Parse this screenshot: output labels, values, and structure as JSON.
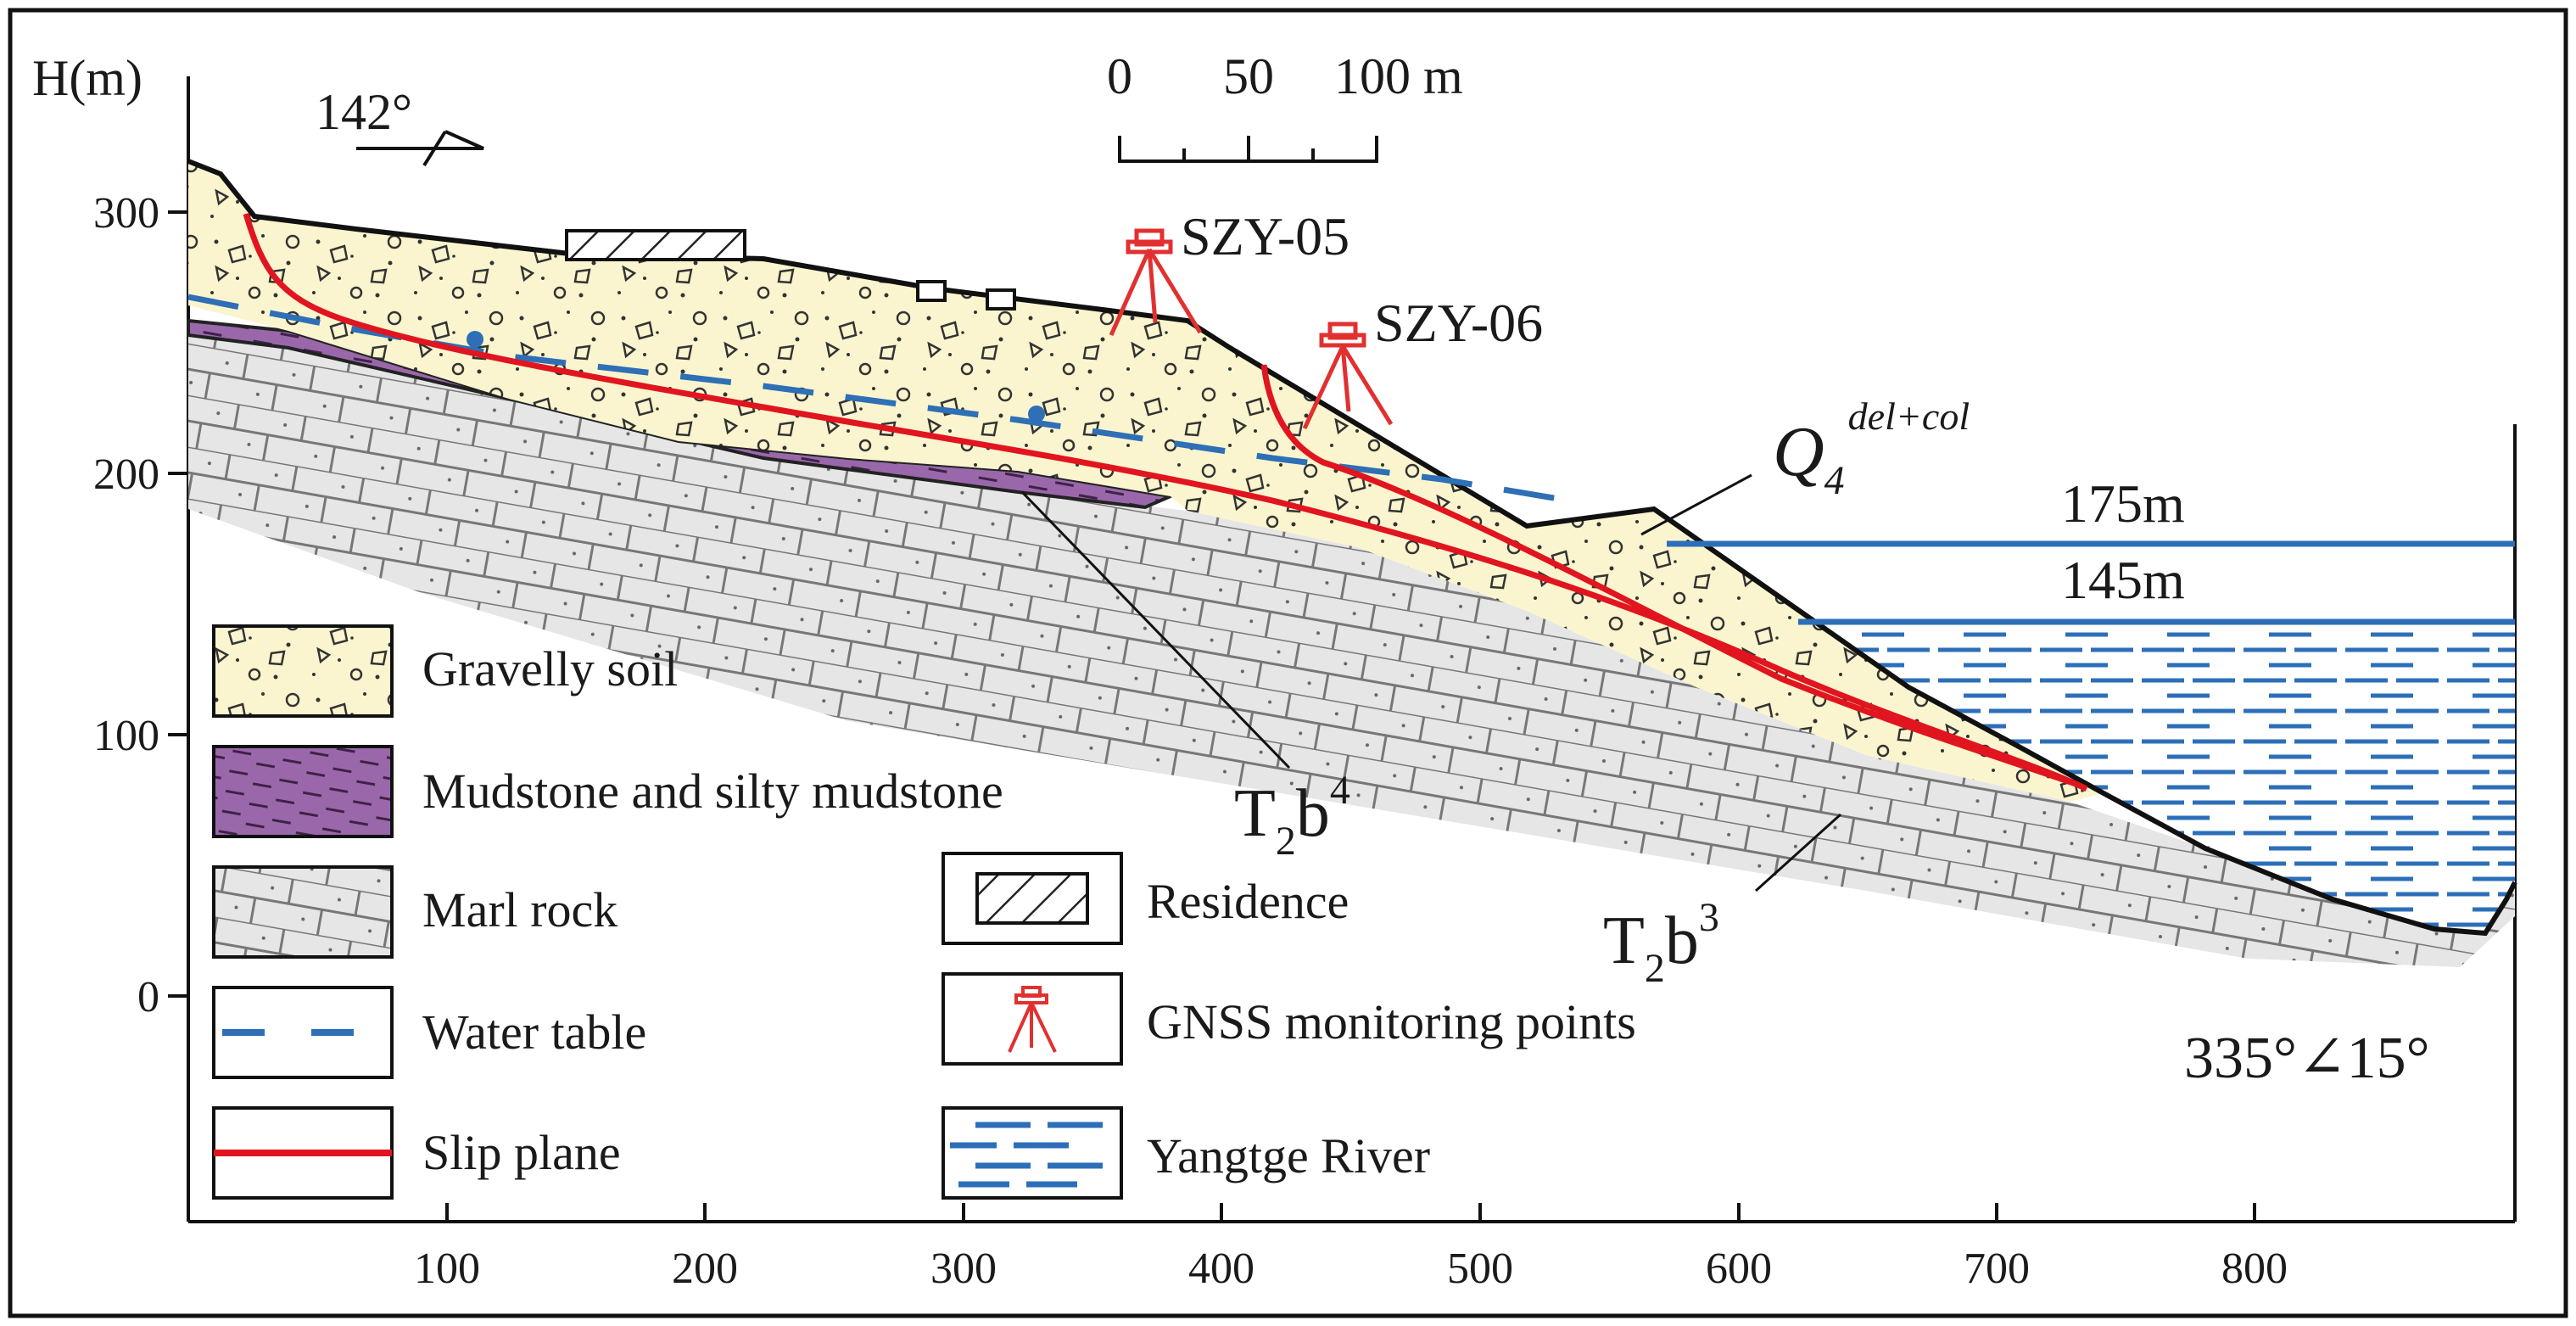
{
  "axes": {
    "y_label": "H(m)",
    "y_ticks": [
      "300",
      "200",
      "100",
      "0"
    ],
    "x_ticks": [
      "100",
      "200",
      "300",
      "400",
      "500",
      "600",
      "700",
      "800"
    ]
  },
  "orientation": {
    "label": "142°"
  },
  "scale_bar": {
    "tick_labels": [
      "0",
      "50",
      "100 m"
    ]
  },
  "monitoring_points": [
    "SZY-05",
    "SZY-06"
  ],
  "formations": {
    "deposit": {
      "base": "Q",
      "subscript": "4",
      "superscript": "del+col"
    },
    "upper": {
      "base": "T",
      "sub": "2",
      "mid": "b",
      "sup": "4"
    },
    "lower": {
      "base": "T",
      "sub": "2",
      "mid": "b",
      "sup": "3"
    }
  },
  "water_levels": [
    "175m",
    "145m"
  ],
  "dip": "335°∠15°",
  "legend": {
    "left": [
      "Gravelly soil",
      "Mudstone and silty mudstone",
      "Marl rock",
      "Water table",
      "Slip plane"
    ],
    "right": [
      "Residence",
      "GNSS monitoring points",
      "Yangtge River"
    ]
  },
  "colors": {
    "gravel_fill": "#faf5cf",
    "mudstone_fill": "#9a68aa",
    "marl_fill": "#e6e6e6",
    "water_table": "#2e6fb5",
    "slip_plane": "#e0151f",
    "river": "#2c6fb8",
    "gnss": "#e23030"
  }
}
